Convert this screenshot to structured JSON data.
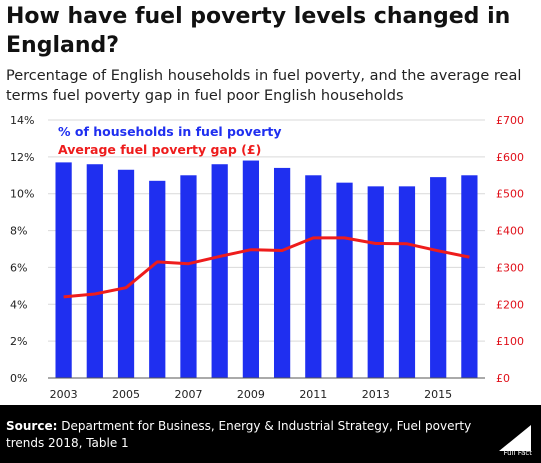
{
  "header": {
    "title": "How have fuel poverty levels changed in England?",
    "subtitle": "Percentage of English households in fuel poverty, and the average real terms fuel poverty gap in fuel poor English households"
  },
  "footer": {
    "source_label": "Source:",
    "source_text": " Department for Business, Energy & Industrial Strategy, Fuel poverty trends 2018, Table 1",
    "brand": "Full Fact"
  },
  "colors": {
    "bar": "#1f2ff0",
    "line": "#ee1c1c",
    "right_axis": "#e0101a"
  },
  "chart_data": {
    "type": "bar",
    "title": "",
    "xlabel": "",
    "ylabel": "",
    "x": [
      2003,
      2004,
      2005,
      2006,
      2007,
      2008,
      2009,
      2010,
      2011,
      2012,
      2013,
      2014,
      2015,
      2016
    ],
    "x_tick_labels": [
      "2003",
      "2005",
      "2007",
      "2009",
      "2011",
      "2013",
      "2015"
    ],
    "y_left_ticks": [
      "0%",
      "2%",
      "4%",
      "6%",
      "8%",
      "10%",
      "12%",
      "14%"
    ],
    "y_right_ticks": [
      "£0",
      "£100",
      "£200",
      "£300",
      "£400",
      "£500",
      "£600",
      "£700"
    ],
    "ylim_left": [
      0,
      14
    ],
    "ylim_right": [
      0,
      700
    ],
    "grid": true,
    "legend_position": "top-left",
    "series": [
      {
        "name": "% of households in fuel poverty",
        "type": "bar",
        "axis": "left",
        "values": [
          11.7,
          11.6,
          11.3,
          10.7,
          11.0,
          11.6,
          11.8,
          11.4,
          11.0,
          10.6,
          10.4,
          10.4,
          10.9,
          11.0
        ]
      },
      {
        "name": "Average fuel poverty gap (£)",
        "type": "line",
        "axis": "right",
        "values": [
          220,
          228,
          245,
          315,
          310,
          330,
          348,
          346,
          380,
          380,
          365,
          364,
          345,
          328
        ]
      }
    ]
  }
}
